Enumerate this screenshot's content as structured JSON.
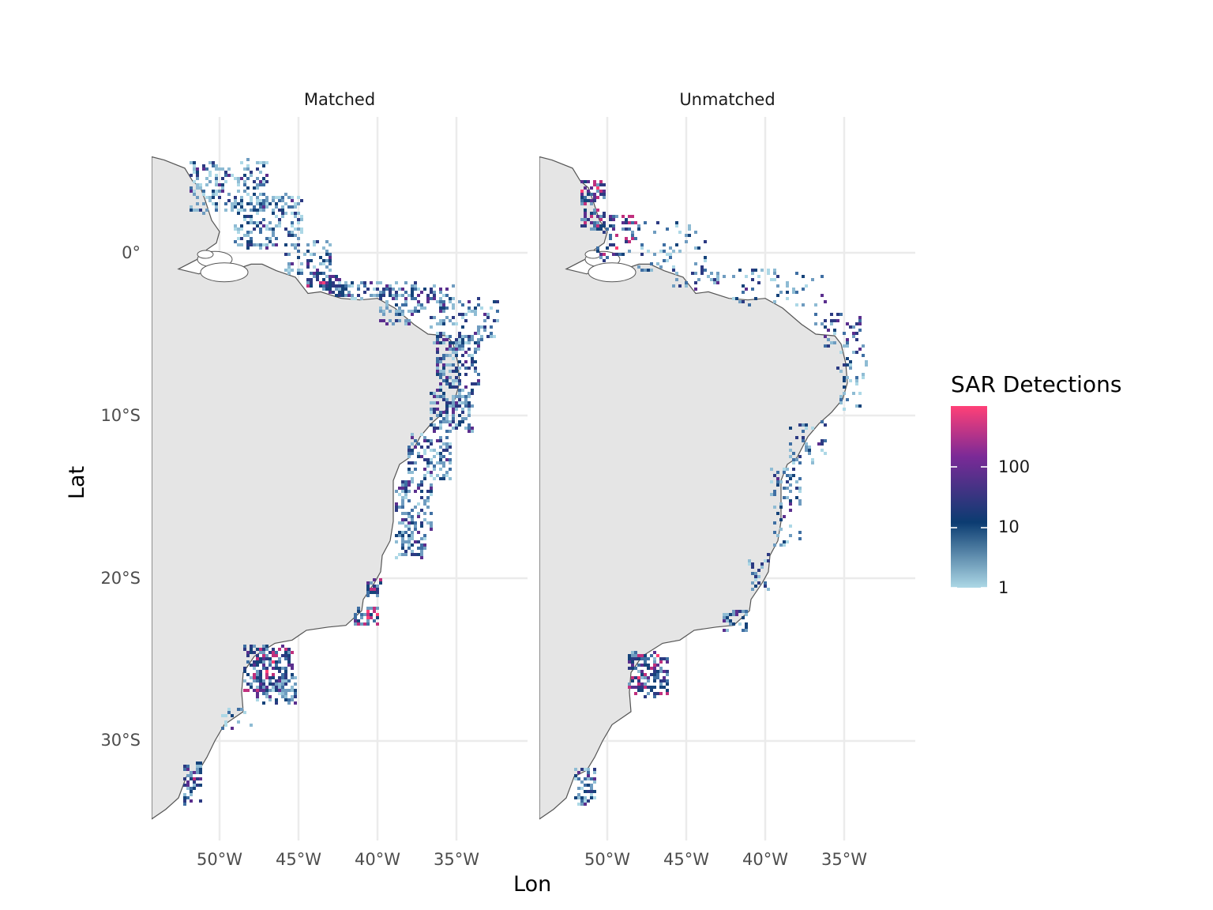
{
  "panels": [
    {
      "title": "Matched"
    },
    {
      "title": "Unmatched"
    }
  ],
  "axes": {
    "x_label": "Lon",
    "y_label": "Lat",
    "x_ticks": [
      "50°W",
      "45°W",
      "40°W",
      "35°W"
    ],
    "x_tick_values": [
      -50,
      -45,
      -40,
      -35
    ],
    "y_ticks": [
      "0°",
      "10°S",
      "20°S",
      "30°S"
    ],
    "y_tick_values": [
      0,
      -10,
      -20,
      -30
    ],
    "lon_range": [
      -54.3,
      -30.4
    ],
    "lat_range": [
      -35.5,
      7.9
    ]
  },
  "legend": {
    "title": "SAR Detections",
    "labels": [
      "100",
      "10",
      "1"
    ],
    "scale": "log",
    "colors": {
      "low": "#add8e6",
      "mid": "#0b3c71",
      "high": "#7a2a97",
      "max": "#ff4077"
    }
  },
  "colors": {
    "land": "#e5e5e5",
    "coast": "#555555",
    "grid": "#ebebeb"
  }
}
